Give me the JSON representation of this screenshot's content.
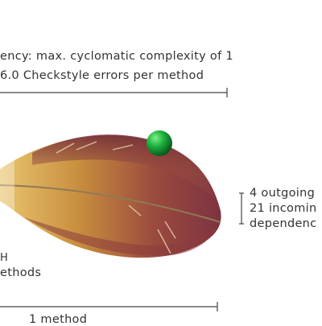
{
  "top_label": {
    "line1": "ency: max. cyclomatic complexity of 1",
    "line2": "6.0 Checkstyle errors per method"
  },
  "right_label": {
    "line1": "4 outgoing",
    "line2": "21 incomin",
    "line3": "dependenc"
  },
  "left_label": {
    "line1": "H",
    "line2": "ethods"
  },
  "bottom_label": "1 method",
  "colors": {
    "feather_shadow": "#7a2e3a",
    "feather_body": "#9a4a3e",
    "feather_gold": "#d2a04a",
    "rachis": "#8f7a55",
    "ball": "#1aa63a",
    "dimension_line": "#444444"
  }
}
